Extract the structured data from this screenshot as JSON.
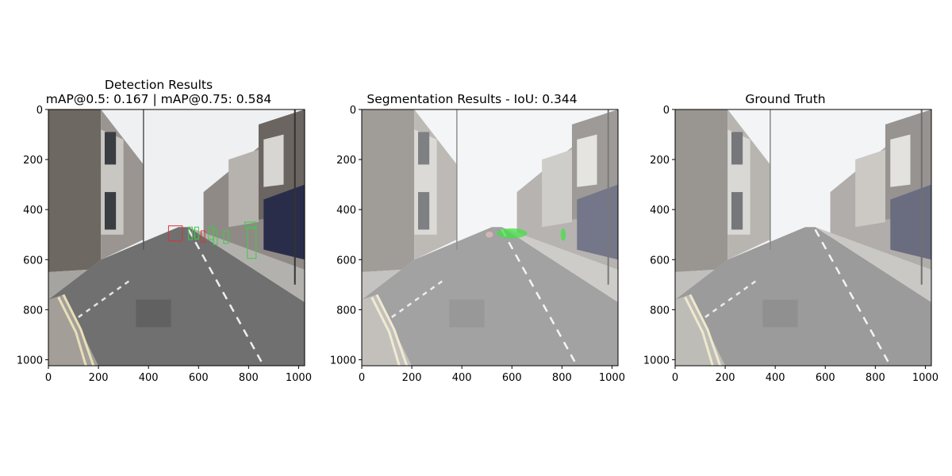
{
  "chart_data": [
    {
      "type": "image",
      "title_lines": [
        "Detection Results",
        "mAP@0.5: 0.167 | mAP@0.75: 0.584"
      ],
      "xlim": [
        0,
        1024
      ],
      "ylim": [
        1024,
        0
      ],
      "xticks": [
        0,
        200,
        400,
        600,
        800,
        1000
      ],
      "yticks": [
        0,
        200,
        400,
        600,
        800,
        1000
      ],
      "overlay": "detection-boxes",
      "box_colors": {
        "red": "#e0303a",
        "green": "#3ccc44"
      },
      "boxes": [
        {
          "class": "red",
          "x0": 480,
          "y0": 465,
          "x1": 535,
          "y1": 525
        },
        {
          "class": "red",
          "x0": 610,
          "y0": 485,
          "x1": 625,
          "y1": 530
        },
        {
          "class": "green",
          "x0": 560,
          "y0": 470,
          "x1": 575,
          "y1": 520
        },
        {
          "class": "green",
          "x0": 585,
          "y0": 470,
          "x1": 600,
          "y1": 518
        },
        {
          "class": "green",
          "x0": 640,
          "y0": 470,
          "x1": 660,
          "y1": 520
        },
        {
          "class": "green",
          "x0": 660,
          "y0": 480,
          "x1": 675,
          "y1": 540
        },
        {
          "class": "green",
          "x0": 700,
          "y0": 485,
          "x1": 720,
          "y1": 535
        },
        {
          "class": "green",
          "x0": 785,
          "y0": 450,
          "x1": 830,
          "y1": 475
        },
        {
          "class": "green",
          "x0": 795,
          "y0": 470,
          "x1": 830,
          "y1": 595
        }
      ]
    },
    {
      "type": "image",
      "title_lines": [
        "Segmentation Results - IoU: 0.344"
      ],
      "xlim": [
        0,
        1024
      ],
      "ylim": [
        1024,
        0
      ],
      "xticks": [
        0,
        200,
        400,
        600,
        800,
        1000
      ],
      "yticks": [
        0,
        200,
        400,
        600,
        800,
        1000
      ],
      "overlay": "segmentation-mask",
      "mask_color": "#46e046"
    },
    {
      "type": "image",
      "title_lines": [
        "Ground Truth"
      ],
      "xlim": [
        0,
        1024
      ],
      "ylim": [
        1024,
        0
      ],
      "xticks": [
        0,
        200,
        400,
        600,
        800,
        1000
      ],
      "yticks": [
        0,
        200,
        400,
        600,
        800,
        1000
      ],
      "overlay": "none"
    }
  ]
}
